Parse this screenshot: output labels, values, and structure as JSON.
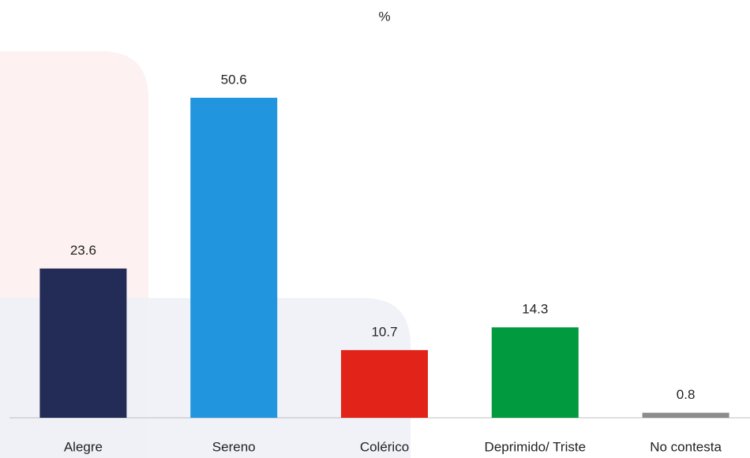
{
  "chart_data": {
    "type": "bar",
    "title": "%",
    "categories": [
      "Alegre",
      "Sereno",
      "Colérico",
      "Deprimido/ Triste",
      "No contesta"
    ],
    "values": [
      23.6,
      50.6,
      10.7,
      14.3,
      0.8
    ],
    "colors": [
      "#232b57",
      "#2196df",
      "#e2231a",
      "#019a3f",
      "#8c8c8c"
    ]
  }
}
